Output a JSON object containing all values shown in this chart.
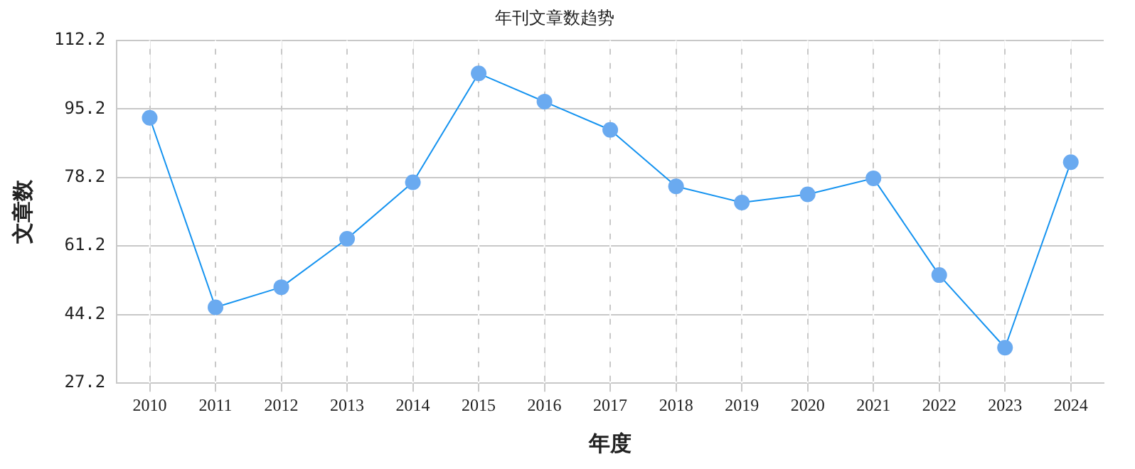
{
  "chart_data": {
    "type": "line",
    "title": "年刊文章数趋势",
    "xlabel": "年度",
    "ylabel": "文章数",
    "categories": [
      "2010",
      "2011",
      "2012",
      "2013",
      "2014",
      "2015",
      "2016",
      "2017",
      "2018",
      "2019",
      "2020",
      "2021",
      "2022",
      "2023",
      "2024"
    ],
    "series": [
      {
        "color": "#1593f0",
        "values": [
          93,
          46,
          51,
          63,
          77,
          104,
          97,
          90,
          76,
          72,
          74,
          78,
          54,
          36,
          82
        ]
      }
    ],
    "ylim": [
      27.2,
      112.2
    ],
    "yticks": [
      {
        "value": 27.2,
        "label": "27.2"
      },
      {
        "value": 44.2,
        "label": "44.2"
      },
      {
        "value": 61.2,
        "label": "61.2"
      },
      {
        "value": 78.2,
        "label": "78.2"
      },
      {
        "value": 95.2,
        "label": "95.2"
      },
      {
        "value": 112.2,
        "label": "112.2"
      }
    ],
    "grid": true,
    "marker": "circle",
    "line_style": "solid",
    "legend": false
  }
}
